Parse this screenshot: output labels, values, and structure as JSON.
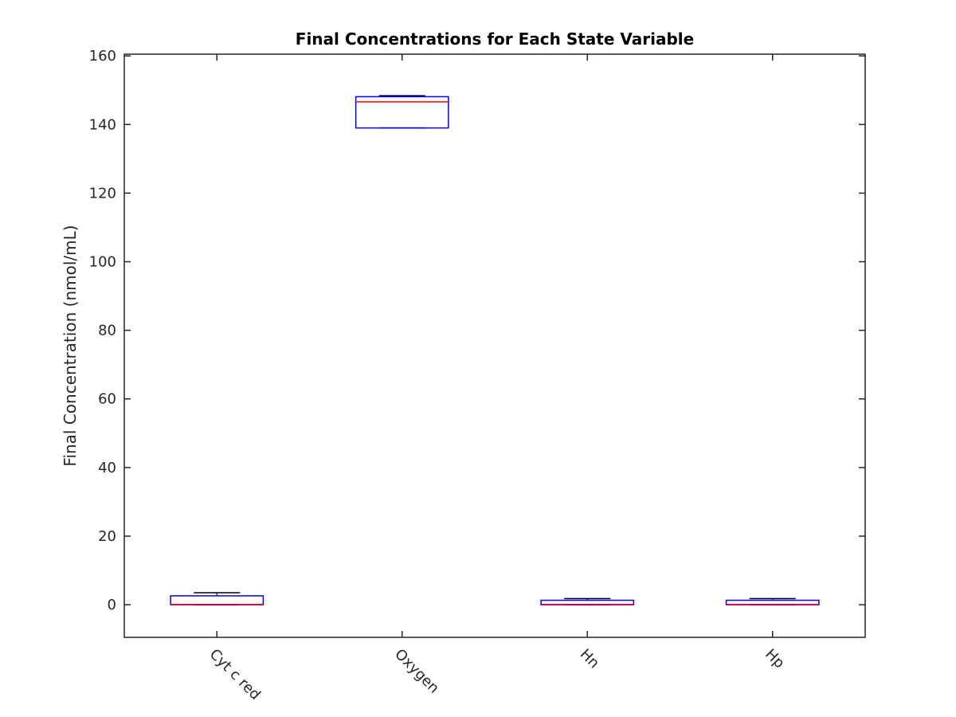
{
  "chart_data": {
    "type": "box",
    "title": "Final Concentrations for Each State Variable",
    "xlabel": "",
    "ylabel": "Final Concentration (nmol/mL)",
    "ylim": [
      -9.5,
      160.5
    ],
    "yticks": [
      0,
      20,
      40,
      60,
      80,
      100,
      120,
      140,
      160
    ],
    "grid": false,
    "categories": [
      "Cyt c red",
      "Oxygen",
      "Hn",
      "Hp"
    ],
    "boxes": [
      {
        "label": "Cyt c red",
        "q1": 0.0,
        "median": 0.1,
        "q3": 2.6,
        "whisker_low": 0.0,
        "whisker_high": 3.5
      },
      {
        "label": "Oxygen",
        "q1": 139.0,
        "median": 146.6,
        "q3": 148.1,
        "whisker_low": 139.0,
        "whisker_high": 148.4
      },
      {
        "label": "Hn",
        "q1": 0.0,
        "median": 0.1,
        "q3": 1.3,
        "whisker_low": 0.0,
        "whisker_high": 1.8
      },
      {
        "label": "Hp",
        "q1": 0.0,
        "median": 0.1,
        "q3": 1.3,
        "whisker_low": 0.0,
        "whisker_high": 1.8
      }
    ],
    "colors": {
      "box": "#0000ff",
      "median": "#ff0000",
      "whisker": "#000000",
      "axis": "#262626"
    }
  }
}
